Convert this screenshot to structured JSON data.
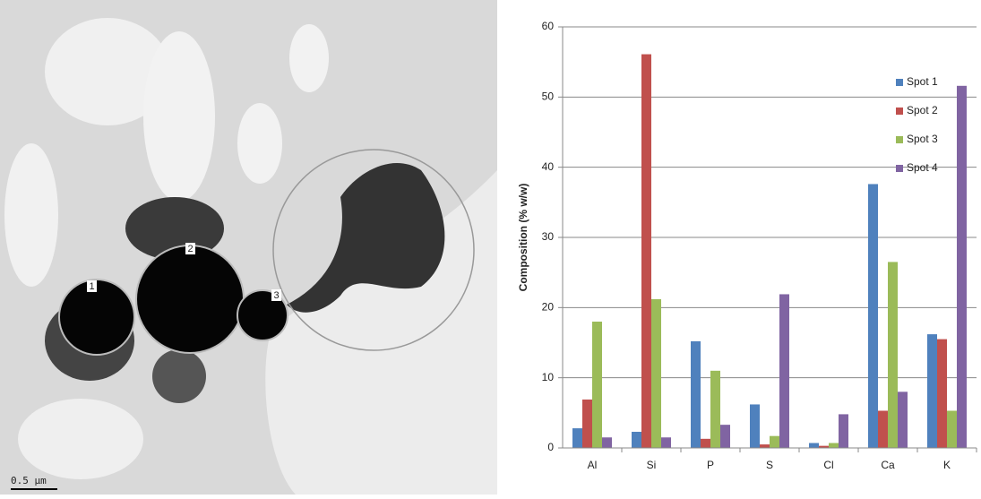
{
  "micrograph": {
    "spot_labels": [
      "1",
      "2",
      "3"
    ],
    "scale_bar": "0.5 µm"
  },
  "chart_data": {
    "type": "bar",
    "ylabel": "Composition (% w/w)",
    "categories": [
      "Al",
      "Si",
      "P",
      "S",
      "Cl",
      "Ca",
      "K"
    ],
    "series": [
      {
        "name": "Spot 1",
        "color": "#4f81bd",
        "values": [
          2.8,
          2.3,
          15.2,
          6.2,
          0.7,
          37.6,
          16.2
        ]
      },
      {
        "name": "Spot 2",
        "color": "#c0504d",
        "values": [
          6.9,
          56.1,
          1.3,
          0.5,
          0.3,
          5.3,
          15.5
        ]
      },
      {
        "name": "Spot 3",
        "color": "#9bbb59",
        "values": [
          18.0,
          21.2,
          11.0,
          1.7,
          0.7,
          26.5,
          5.3
        ]
      },
      {
        "name": "Spot 4",
        "color": "#8064a2",
        "values": [
          1.5,
          1.5,
          3.3,
          21.9,
          4.8,
          8.0,
          51.6
        ]
      }
    ],
    "ylim": [
      0,
      60
    ],
    "yticks": [
      0,
      10,
      20,
      30,
      40,
      50,
      60
    ],
    "grid": true,
    "legend": "right"
  }
}
